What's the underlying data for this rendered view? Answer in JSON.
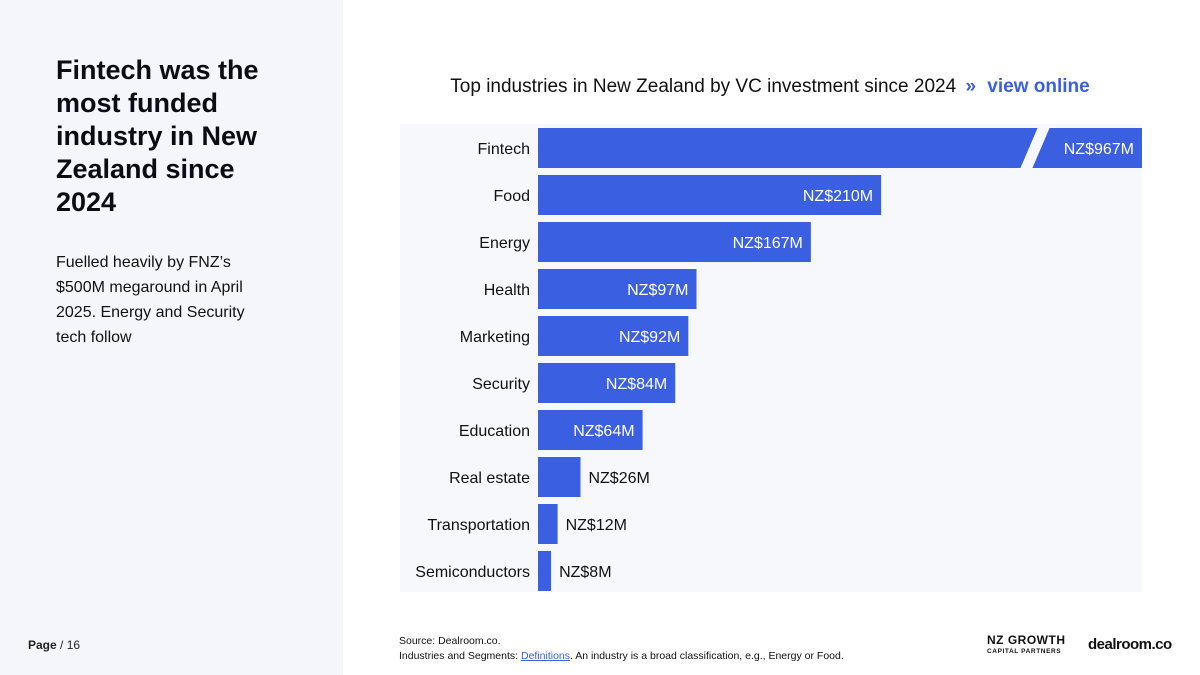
{
  "headline": "Fintech was the most funded industry in New Zealand since 2024",
  "subtext": "Fuelled heavily by FNZ’s $500M megaround in April 2025. Energy and Security tech follow",
  "page": {
    "label": "Page",
    "separator": "/",
    "number": "16"
  },
  "chart_title": {
    "text": "Top industries in New Zealand by VC investment since 2024",
    "arrows": "»",
    "link": "view online"
  },
  "chart_data": {
    "type": "bar",
    "orientation": "horizontal",
    "title": "Top industries in New Zealand by VC investment since 2024",
    "categories": [
      "Fintech",
      "Food",
      "Energy",
      "Health",
      "Marketing",
      "Security",
      "Education",
      "Real estate",
      "Transportation",
      "Semiconductors"
    ],
    "values": [
      967,
      210,
      167,
      97,
      92,
      84,
      64,
      26,
      12,
      8
    ],
    "value_labels": [
      "NZ$967M",
      "NZ$210M",
      "NZ$167M",
      "NZ$97M",
      "NZ$92M",
      "NZ$84M",
      "NZ$64M",
      "NZ$26M",
      "NZ$12M",
      "NZ$8M"
    ],
    "unit": "NZ$M",
    "axis_break": true,
    "xlabel": "",
    "ylabel": ""
  },
  "source": {
    "line1": "Source:  Dealroom.co.",
    "line2_prefix": "Industries and Segments: ",
    "definitions_link": "Definitions",
    "line2_suffix": ". An industry is a broad classification, e.g., Energy or Food."
  },
  "logos": {
    "nz_line1": "NZ GROWTH",
    "nz_line2": "CAPITAL PARTNERS",
    "dealroom": "dealroom.co"
  },
  "colors": {
    "bar": "#3a5fe0",
    "accent": "#3a5fe0",
    "panel": "#f4f6fb"
  }
}
